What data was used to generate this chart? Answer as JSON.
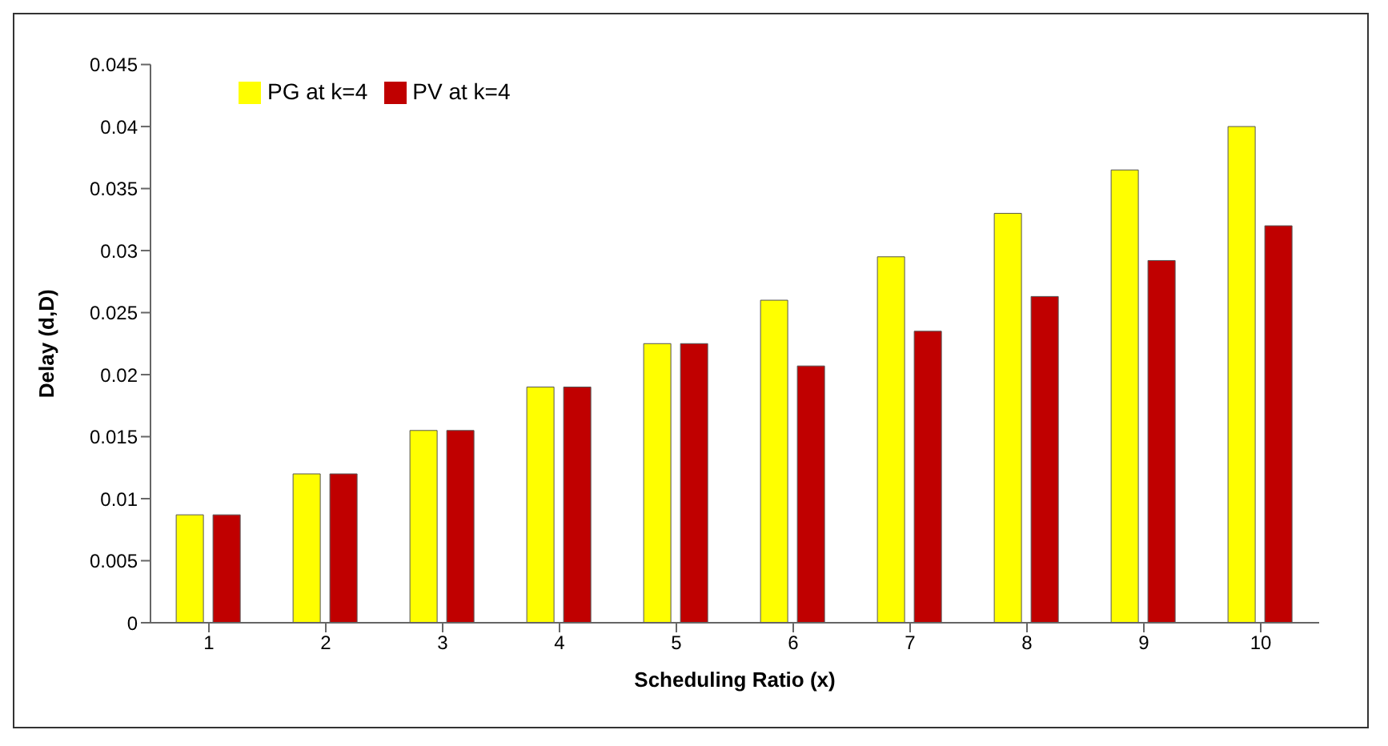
{
  "chart_data": {
    "type": "bar",
    "xlabel": "Scheduling Ratio (x)",
    "ylabel": "Delay (d,D)",
    "categories": [
      "1",
      "2",
      "3",
      "4",
      "5",
      "6",
      "7",
      "8",
      "9",
      "10"
    ],
    "series": [
      {
        "name": "PG at k=4",
        "color": "#ffff00",
        "values": [
          0.0087,
          0.012,
          0.0155,
          0.019,
          0.0225,
          0.026,
          0.0295,
          0.033,
          0.0365,
          0.04
        ]
      },
      {
        "name": "PV at k=4",
        "color": "#c00000",
        "values": [
          0.0087,
          0.012,
          0.0155,
          0.019,
          0.0225,
          0.0207,
          0.0235,
          0.0263,
          0.0292,
          0.032
        ]
      }
    ],
    "ylim": [
      0,
      0.045
    ],
    "yticks": [
      0,
      0.005,
      0.01,
      0.015,
      0.02,
      0.025,
      0.03,
      0.035,
      0.04,
      0.045
    ],
    "grid": false,
    "legend": "top left"
  }
}
